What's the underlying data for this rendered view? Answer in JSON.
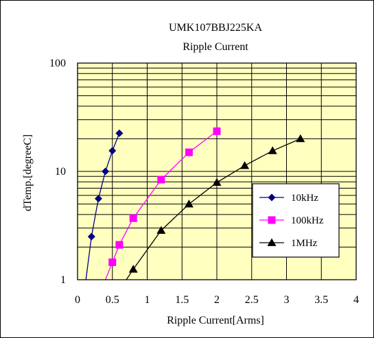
{
  "chart_data": {
    "type": "line",
    "title": "UMK107BBJ225KA",
    "subtitle": "Ripple Current",
    "xlabel": "Ripple Current[Arms]",
    "ylabel": "dTemp.[degreeC]",
    "xlim": [
      0,
      4
    ],
    "ylim": [
      1,
      100
    ],
    "yscale": "log",
    "grid": true,
    "plot_background": "#FFFFC0",
    "x_ticks": [
      "0",
      "0.5",
      "1",
      "1.5",
      "2",
      "2.5",
      "3",
      "3.5",
      "4"
    ],
    "y_ticks": [
      "1",
      "10",
      "100"
    ],
    "legend_position": "lower-right",
    "series": [
      {
        "name": "10kHz",
        "color": "#000080",
        "marker": "diamond",
        "x": [
          0.2,
          0.3,
          0.4,
          0.5,
          0.6
        ],
        "y": [
          2.5,
          5.6,
          10,
          15.5,
          22.5
        ],
        "curve_start": [
          0.12,
          1
        ]
      },
      {
        "name": "100kHz",
        "color": "#FF00FF",
        "marker": "square",
        "x": [
          0.5,
          0.6,
          0.8,
          1.2,
          1.6,
          2.0
        ],
        "y": [
          1.45,
          2.1,
          3.7,
          8.4,
          15,
          23.5
        ],
        "curve_start": [
          0.4,
          1
        ]
      },
      {
        "name": "1MHz",
        "color": "#000000",
        "marker": "triangle",
        "x": [
          0.8,
          1.2,
          1.6,
          2.0,
          2.4,
          2.8,
          3.2
        ],
        "y": [
          1.25,
          2.85,
          5.0,
          7.9,
          11.3,
          15.5,
          20.0
        ],
        "curve_start": [
          0.7,
          1
        ]
      }
    ]
  }
}
